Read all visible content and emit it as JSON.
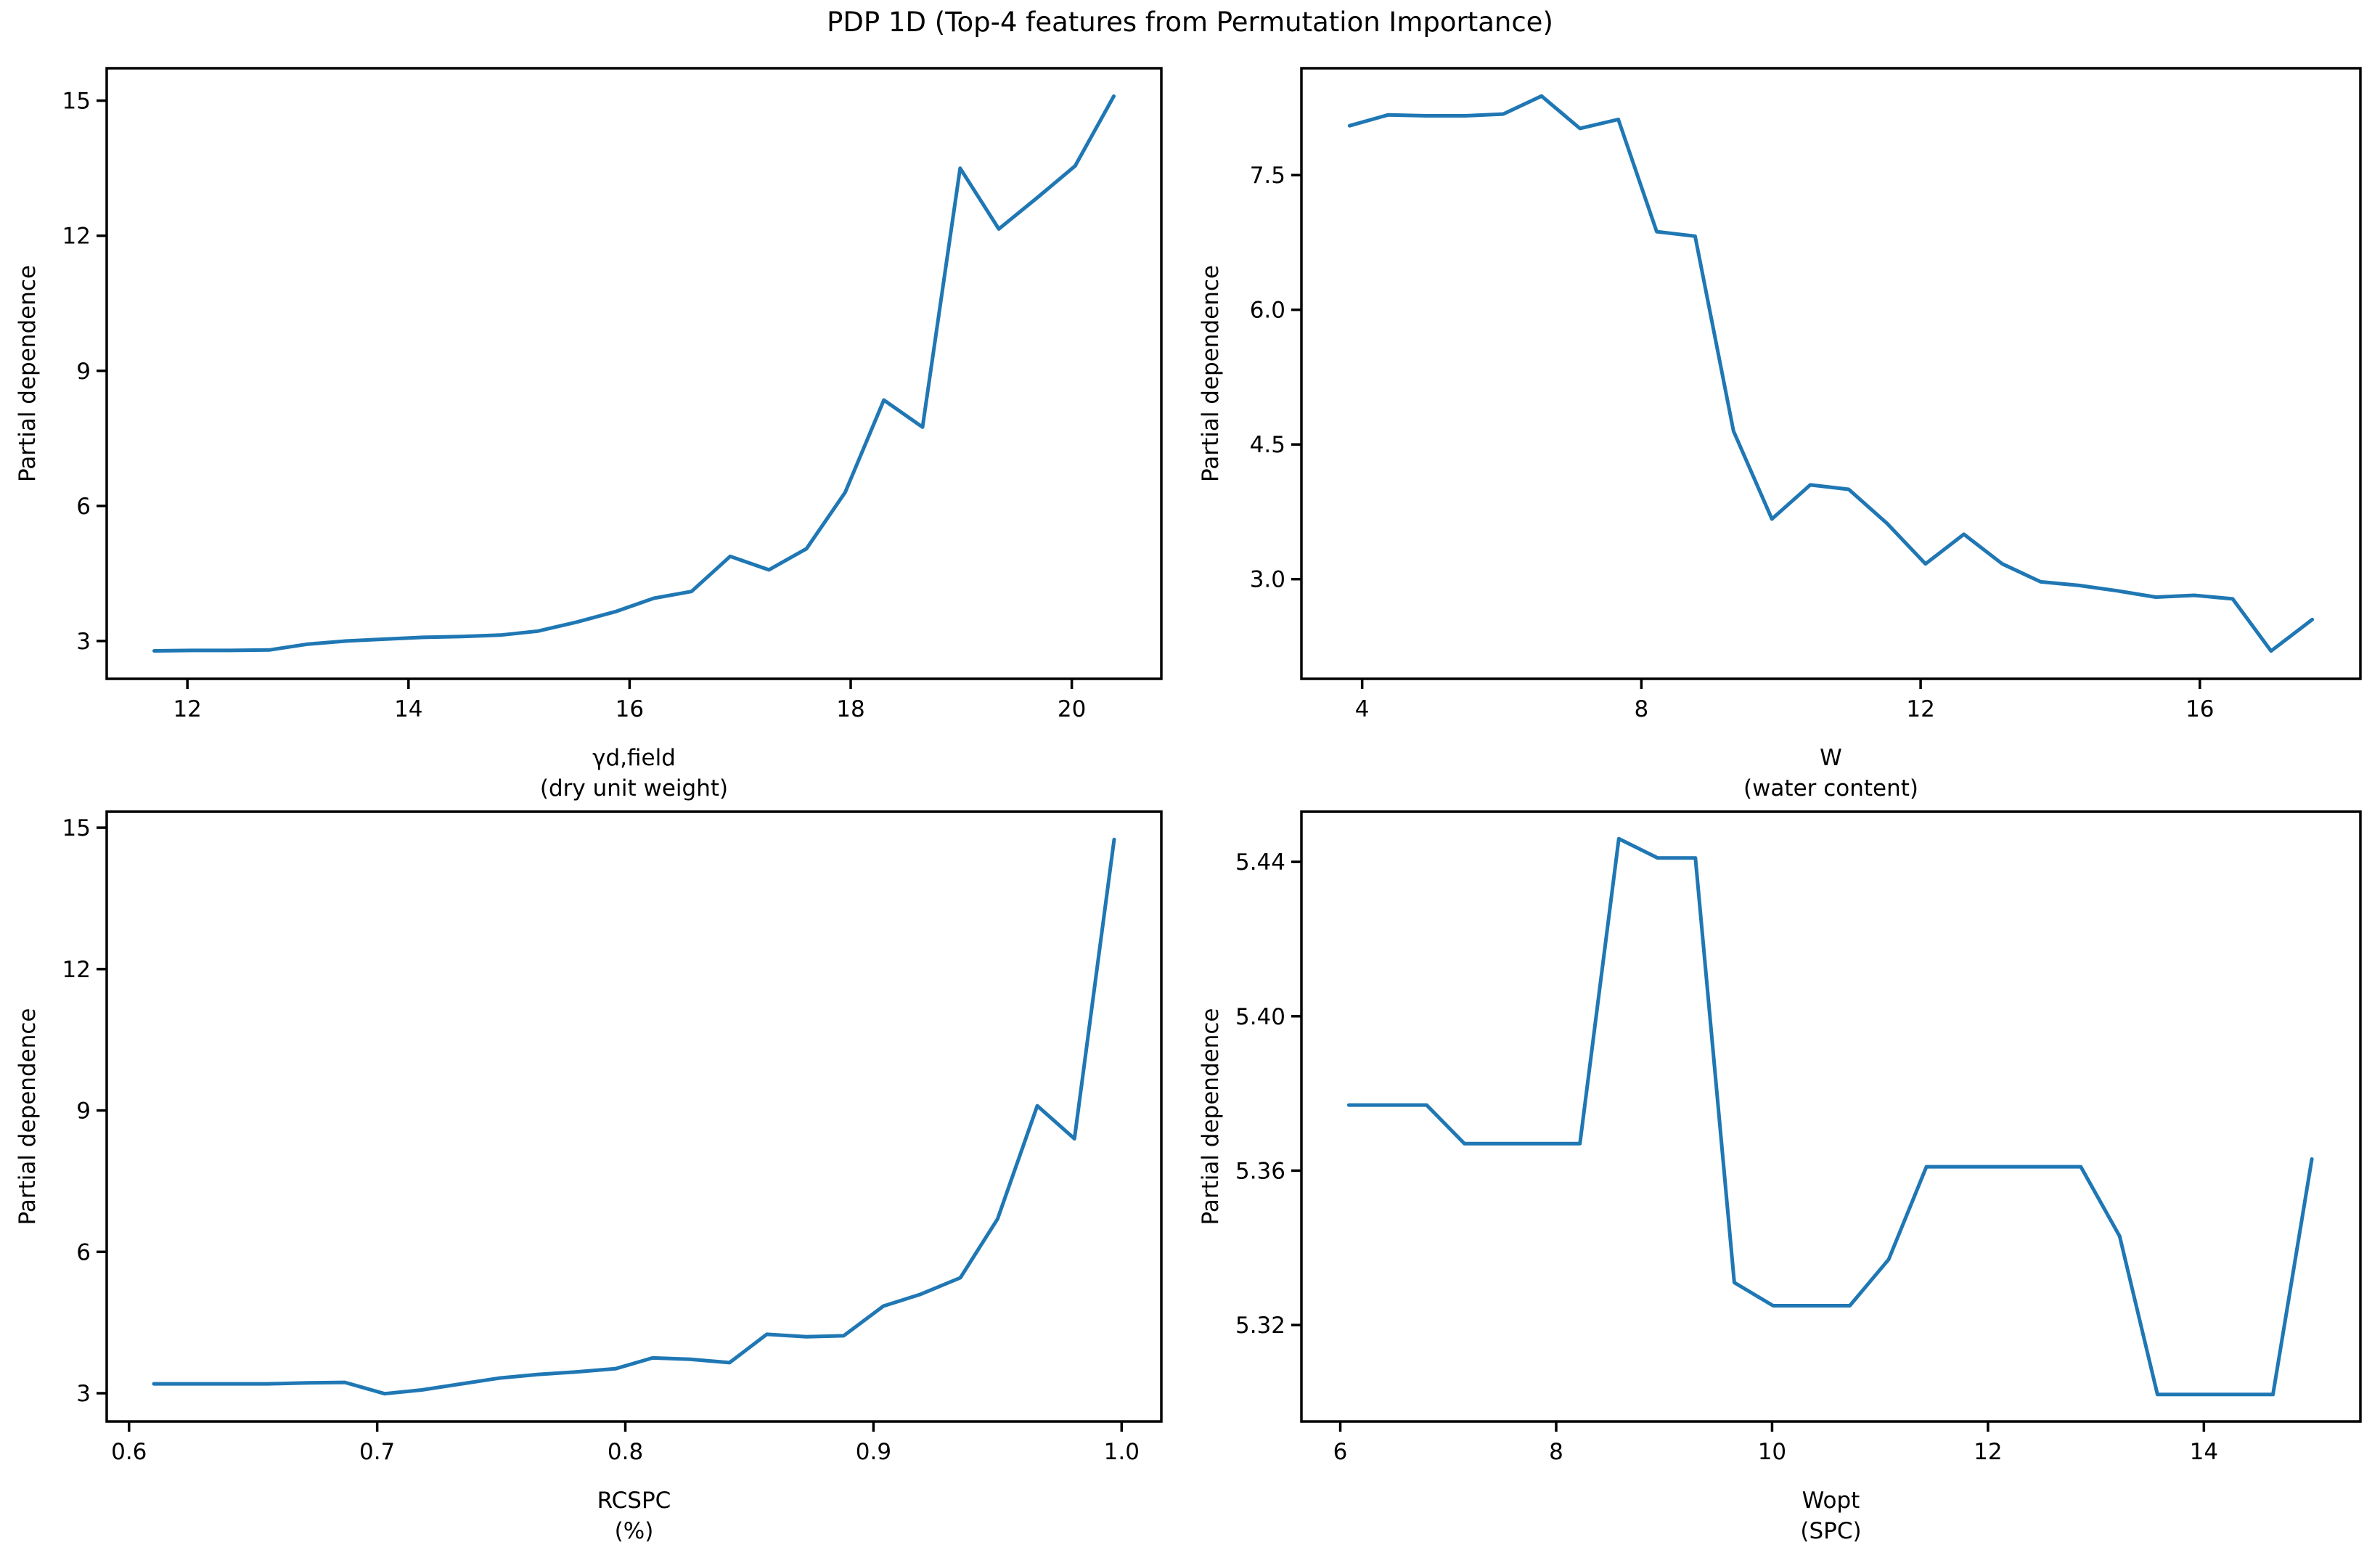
{
  "figure": {
    "title": "PDP 1D (Top-4 features from Permutation Importance)",
    "background_color": "#ffffff",
    "line_color": "#1f77b4",
    "spine_color": "#000000",
    "text_color": "#000000"
  },
  "chart_data": [
    {
      "id": "gamma-d-field",
      "type": "line",
      "xlabel": "γd,field",
      "xlabel2": "(dry unit weight)",
      "ylabel": "Partial dependence",
      "legend": null,
      "grid": false,
      "xlim": [
        11.27,
        20.81
      ],
      "ylim": [
        2.16,
        15.72
      ],
      "xticks": [
        12,
        14,
        16,
        18,
        20
      ],
      "xtick_labels": [
        "12",
        "14",
        "16",
        "18",
        "20"
      ],
      "yticks": [
        3,
        6,
        9,
        12,
        15
      ],
      "ytick_labels": [
        "3",
        "6",
        "9",
        "12",
        "15"
      ],
      "x": [
        11.7,
        12.05,
        12.39,
        12.74,
        13.09,
        13.44,
        13.78,
        14.13,
        14.48,
        14.83,
        15.17,
        15.52,
        15.87,
        16.22,
        16.56,
        16.91,
        17.26,
        17.6,
        17.95,
        18.3,
        18.65,
        18.99,
        19.34,
        19.69,
        20.03,
        20.38
      ],
      "y": [
        2.78,
        2.79,
        2.79,
        2.8,
        2.93,
        3.0,
        3.04,
        3.08,
        3.1,
        3.13,
        3.22,
        3.42,
        3.65,
        3.95,
        4.1,
        4.88,
        4.58,
        5.05,
        6.3,
        8.35,
        7.75,
        13.5,
        12.15,
        12.85,
        13.55,
        15.1
      ]
    },
    {
      "id": "w-water-content",
      "type": "line",
      "xlabel": "W",
      "xlabel2": "(water content)",
      "ylabel": "Partial dependence",
      "legend": null,
      "grid": false,
      "xlim": [
        3.13,
        18.3
      ],
      "ylim": [
        1.89,
        8.69
      ],
      "xticks": [
        4,
        8,
        12,
        16
      ],
      "xtick_labels": [
        "4",
        "8",
        "12",
        "16"
      ],
      "yticks": [
        3.0,
        4.5,
        6.0,
        7.5
      ],
      "ytick_labels": [
        "3.0",
        "4.5",
        "6.0",
        "7.5"
      ],
      "x": [
        3.82,
        4.37,
        4.92,
        5.47,
        6.02,
        6.57,
        7.12,
        7.67,
        8.22,
        8.77,
        9.32,
        9.87,
        10.42,
        10.97,
        11.52,
        12.07,
        12.62,
        13.17,
        13.72,
        14.27,
        14.82,
        15.37,
        15.92,
        16.47,
        17.02,
        17.61
      ],
      "y": [
        8.05,
        8.17,
        8.16,
        8.16,
        8.18,
        8.38,
        8.02,
        8.12,
        6.87,
        6.82,
        4.65,
        3.67,
        4.05,
        4.0,
        3.62,
        3.17,
        3.5,
        3.17,
        2.97,
        2.93,
        2.87,
        2.8,
        2.82,
        2.78,
        2.2,
        2.55
      ]
    },
    {
      "id": "rcspc",
      "type": "line",
      "xlabel": "RCSPC",
      "xlabel2": "(%)",
      "ylabel": "Partial dependence",
      "legend": null,
      "grid": false,
      "xlim": [
        0.591,
        1.016
      ],
      "ylim": [
        2.4,
        15.34
      ],
      "xticks": [
        0.6,
        0.7,
        0.8,
        0.9,
        1.0
      ],
      "xtick_labels": [
        "0.6",
        "0.7",
        "0.8",
        "0.9",
        "1.0"
      ],
      "yticks": [
        3,
        6,
        9,
        12,
        15
      ],
      "ytick_labels": [
        "3",
        "6",
        "9",
        "12",
        "15"
      ],
      "x": [
        0.61,
        0.625,
        0.641,
        0.656,
        0.672,
        0.687,
        0.703,
        0.718,
        0.734,
        0.749,
        0.765,
        0.78,
        0.796,
        0.811,
        0.826,
        0.842,
        0.857,
        0.873,
        0.888,
        0.904,
        0.919,
        0.935,
        0.95,
        0.966,
        0.981,
        0.997
      ],
      "y": [
        3.2,
        3.2,
        3.2,
        3.2,
        3.22,
        3.23,
        2.99,
        3.07,
        3.2,
        3.32,
        3.4,
        3.45,
        3.52,
        3.75,
        3.72,
        3.65,
        4.25,
        4.2,
        4.22,
        4.85,
        5.1,
        5.45,
        6.7,
        9.1,
        8.4,
        14.75
      ]
    },
    {
      "id": "wopt-spc",
      "type": "line",
      "xlabel": "Wopt",
      "xlabel2": "(SPC)",
      "ylabel": "Partial dependence",
      "legend": null,
      "grid": false,
      "xlim": [
        5.64,
        15.45
      ],
      "ylim": [
        5.295,
        5.453
      ],
      "xticks": [
        6,
        8,
        10,
        12,
        14
      ],
      "xtick_labels": [
        "6",
        "8",
        "10",
        "12",
        "14"
      ],
      "yticks": [
        5.32,
        5.36,
        5.4,
        5.44
      ],
      "ytick_labels": [
        "5.32",
        "5.36",
        "5.40",
        "5.44"
      ],
      "x": [
        6.08,
        6.44,
        6.8,
        7.15,
        7.51,
        7.87,
        8.22,
        8.58,
        8.94,
        9.29,
        9.65,
        10.01,
        10.36,
        10.72,
        11.08,
        11.43,
        11.79,
        12.15,
        12.5,
        12.86,
        13.22,
        13.57,
        13.93,
        14.29,
        14.64,
        15.0
      ],
      "y": [
        5.377,
        5.377,
        5.377,
        5.367,
        5.367,
        5.367,
        5.367,
        5.446,
        5.441,
        5.441,
        5.331,
        5.325,
        5.325,
        5.325,
        5.337,
        5.361,
        5.361,
        5.361,
        5.361,
        5.361,
        5.343,
        5.302,
        5.302,
        5.302,
        5.302,
        5.363
      ]
    }
  ]
}
